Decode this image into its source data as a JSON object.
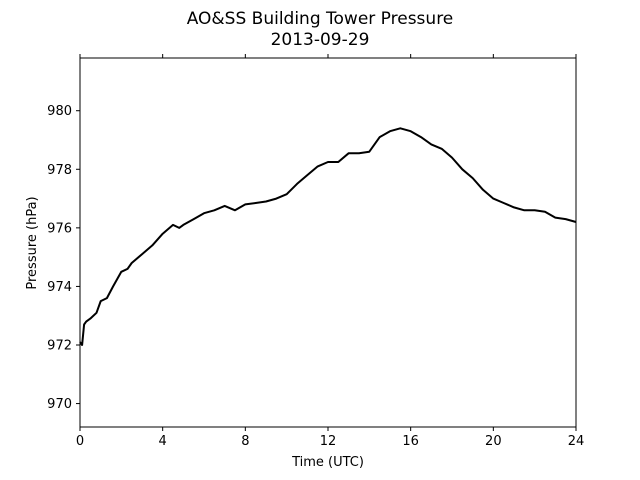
{
  "chart_data": {
    "type": "line",
    "title": "AO&SS Building Tower Pressure",
    "subtitle": "2013-09-29",
    "xlabel": "Time (UTC)",
    "ylabel": "Pressure (hPa)",
    "xlim": [
      0,
      24
    ],
    "ylim": [
      969.2,
      981.8
    ],
    "x_ticks": [
      0,
      4,
      8,
      12,
      16,
      20,
      24
    ],
    "y_ticks": [
      970,
      972,
      974,
      976,
      978,
      980
    ],
    "grid": false,
    "line_color": "#000000",
    "series": [
      {
        "x": [
          0,
          0.1,
          0.2,
          0.3,
          0.5,
          0.8,
          1.0,
          1.3,
          1.6,
          2.0,
          2.3,
          2.5,
          3.0,
          3.5,
          4.0,
          4.5,
          4.8,
          5.0,
          5.5,
          6.0,
          6.5,
          7.0,
          7.5,
          8.0,
          8.5,
          9.0,
          9.5,
          10.0,
          10.5,
          11.0,
          11.5,
          12.0,
          12.5,
          13.0,
          13.5,
          14.0,
          14.5,
          15.0,
          15.5,
          16.0,
          16.5,
          17.0,
          17.5,
          18.0,
          18.5,
          19.0,
          19.5,
          20.0,
          20.5,
          21.0,
          21.5,
          22.0,
          22.5,
          23.0,
          23.5,
          24.0
        ],
        "y": [
          972.1,
          972.0,
          972.7,
          972.8,
          972.9,
          973.1,
          973.5,
          973.6,
          974.0,
          974.5,
          974.6,
          974.8,
          975.1,
          975.4,
          975.8,
          976.1,
          976.0,
          976.1,
          976.3,
          976.5,
          976.6,
          976.75,
          976.6,
          976.8,
          976.85,
          976.9,
          977.0,
          977.15,
          977.5,
          977.8,
          978.1,
          978.25,
          978.25,
          978.55,
          978.55,
          978.6,
          979.1,
          979.3,
          979.4,
          979.3,
          979.1,
          978.85,
          978.7,
          978.4,
          978.0,
          977.7,
          977.3,
          977.0,
          976.85,
          976.7,
          976.6,
          976.6,
          976.55,
          976.35,
          976.3,
          976.2
        ]
      }
    ]
  }
}
